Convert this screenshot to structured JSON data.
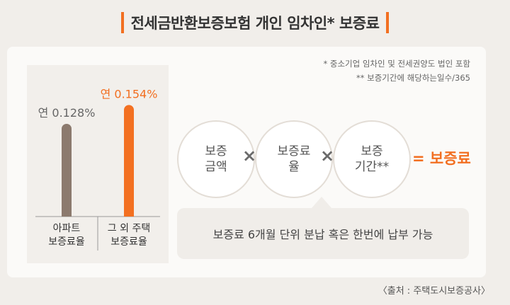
{
  "title": "전세금반환보증보험 개인 임차인* 보증료",
  "notes": [
    "* 중소기업 임차인 및 전세권양도 법인 포함",
    "** 보증기간에 해당하는일수/365"
  ],
  "chart_data": {
    "type": "bar",
    "categories": [
      "아파트\n보증료율",
      "그 외 주택\n보증료율"
    ],
    "values": [
      0.128,
      0.154
    ],
    "data_labels": [
      "연 0.128%",
      "연 0.154%"
    ],
    "colors": [
      "#8c7a6e",
      "#f37021"
    ],
    "label_colors": [
      "#666666",
      "#f26f21"
    ],
    "ylim": [
      0,
      0.17
    ]
  },
  "formula": {
    "terms": [
      "보증\n금액",
      "보증료\n율",
      "보증\n기간**"
    ],
    "operators": [
      "×",
      "×"
    ],
    "equals": "= 보증료"
  },
  "bubble_text": "보증료 6개월 단위 분납 혹은 한번에 납부 가능",
  "source": "〈출처 : 주택도시보증공사〉"
}
